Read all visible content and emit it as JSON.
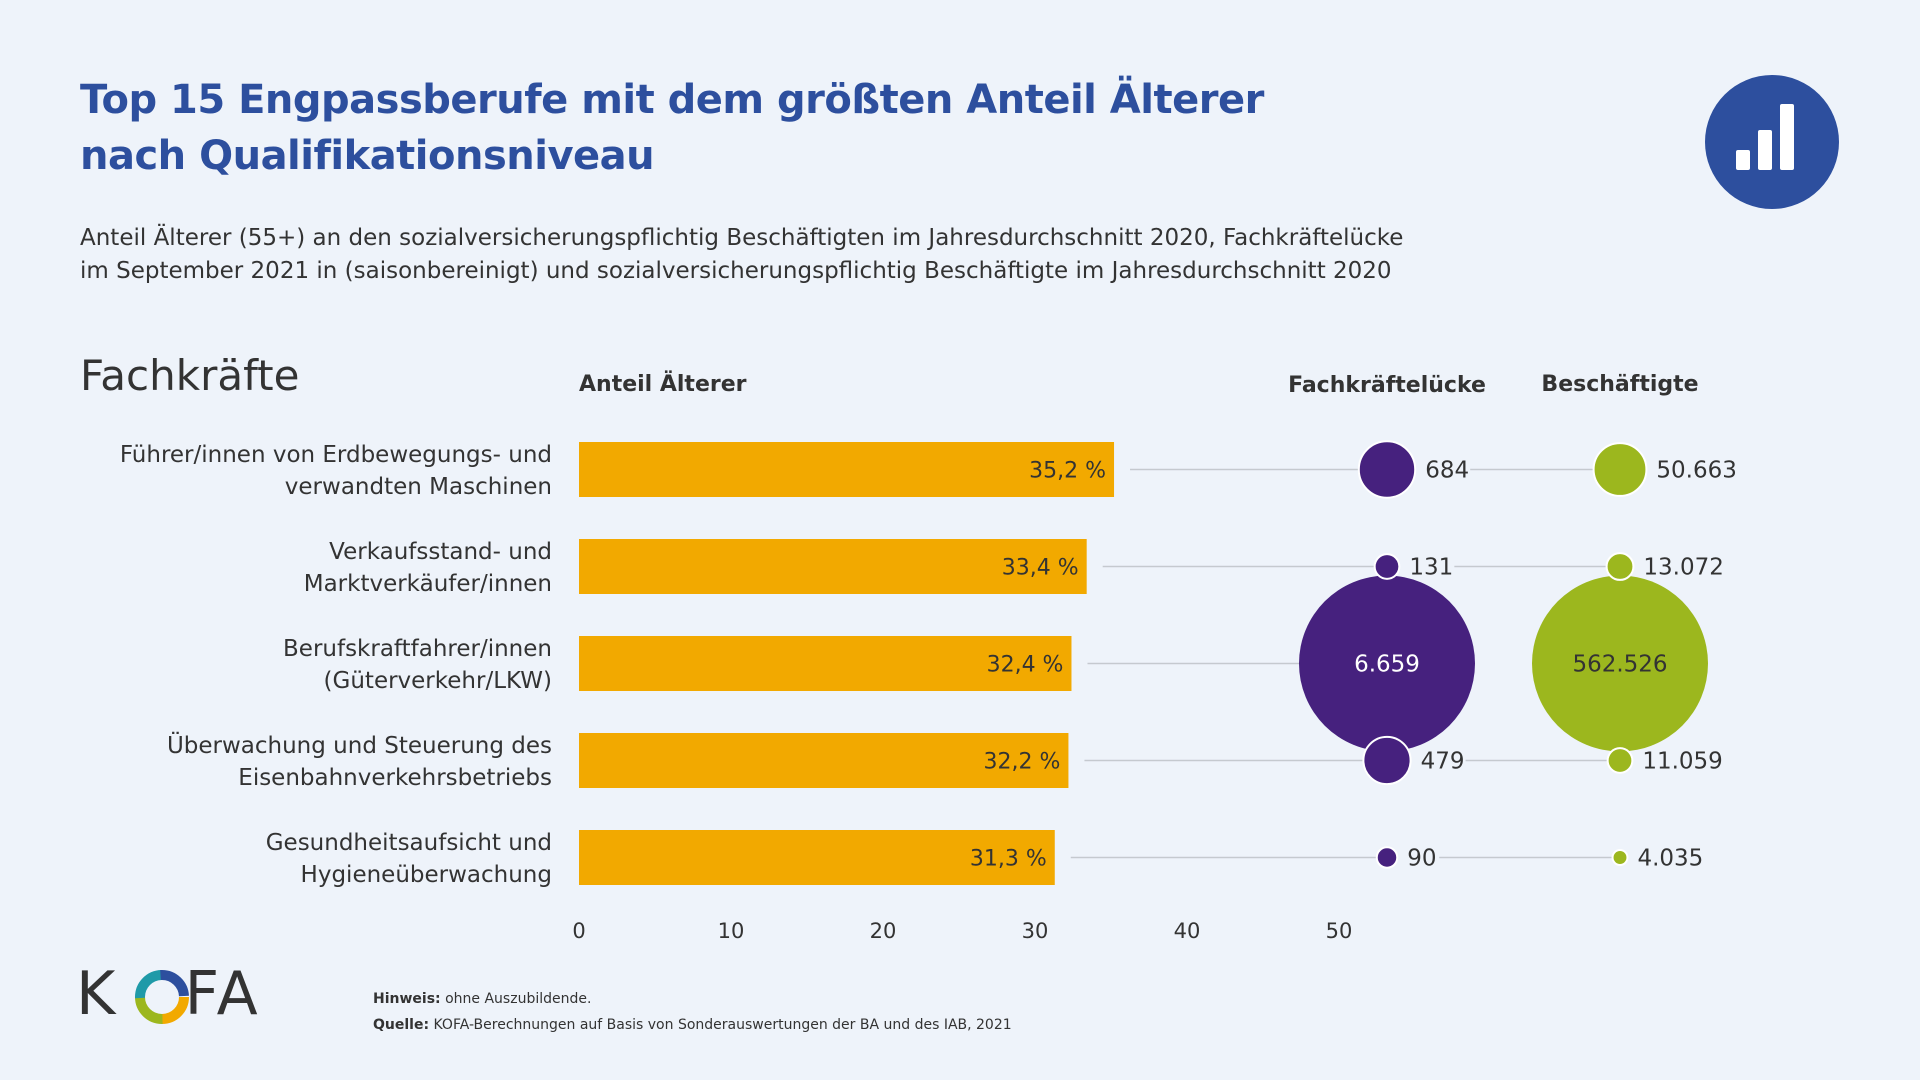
{
  "title": [
    "Top 15 Engpassberufe mit dem größten Anteil Älterer",
    "nach Qualifikationsniveau"
  ],
  "subtitle": [
    "Anteil Älterer (55+) an den sozialversicherungspflichtig Beschäftigten im Jahresdurchschnitt 2020, Fachkräftelücke",
    "im September 2021 in (saisonbereinigt) und sozialversicherungspflichtig Beschäftigte im Jahresdurchschnitt 2020"
  ],
  "brand": {
    "name": "KOFA",
    "letters": [
      "K",
      "F",
      "A"
    ],
    "icon": "bar-chart-icon"
  },
  "notes": {
    "hint_label": "Hinweis:",
    "hint_text": "ohne Auszubildende.",
    "source_label": "Quelle:",
    "source_text": "KOFA-Berechnungen auf Basis von Sonderauswertungen der BA und des IAB, 2021"
  },
  "colors": {
    "title": "#2d4f9e",
    "bar": "#f2a900",
    "gap_bubble": "#46217e",
    "employed_bubble": "#9cb71e",
    "background": "#eef3fa",
    "connector": "#c5c9cf"
  },
  "chart_data": {
    "type": "bar",
    "section": "Fachkräfte",
    "xlabel": "Anteil Älterer",
    "xlim": [
      0,
      50
    ],
    "xticks": [
      0,
      10,
      20,
      30,
      40,
      50
    ],
    "categories": [
      "Führer/innen von Erdbewegungs- und verwandten Maschinen",
      "Verkaufsstand- und Marktverkäufer/innen",
      "Berufskraftfahrer/innen (Güterverkehr/LKW)",
      "Überwachung und Steuerung des Eisenbahnverkehrsbetriebs",
      "Gesundheitsaufsicht und Hygieneüberwachung"
    ],
    "category_lines": [
      [
        "Führer/innen von Erdbewegungs- und",
        "verwandten Maschinen"
      ],
      [
        "Verkaufsstand- und ",
        "Marktverkäufer/innen"
      ],
      [
        "Berufskraftfahrer/innen ",
        "(Güterverkehr/LKW)"
      ],
      [
        "Überwachung und Steuerung des",
        "Eisenbahnverkehrsbetriebs"
      ],
      [
        "Gesundheitsaufsicht und ",
        "Hygieneüberwachung"
      ]
    ],
    "values": [
      35.2,
      33.4,
      32.4,
      32.2,
      31.3
    ],
    "value_labels": [
      "35,2 %",
      "33,4 %",
      "32,4 %",
      "32,2 %",
      "31,3 %"
    ],
    "bubbles": [
      {
        "name": "Fachkräftelücke",
        "values": [
          684,
          131,
          6659,
          479,
          90
        ],
        "labels": [
          "684",
          "131",
          "6.659",
          "479",
          "90"
        ]
      },
      {
        "name": "Beschäftigte",
        "values": [
          50663,
          13072,
          562526,
          11059,
          4035
        ],
        "labels": [
          "50.663",
          "13.072",
          "562.526",
          "11.059",
          "4.035"
        ]
      }
    ]
  }
}
